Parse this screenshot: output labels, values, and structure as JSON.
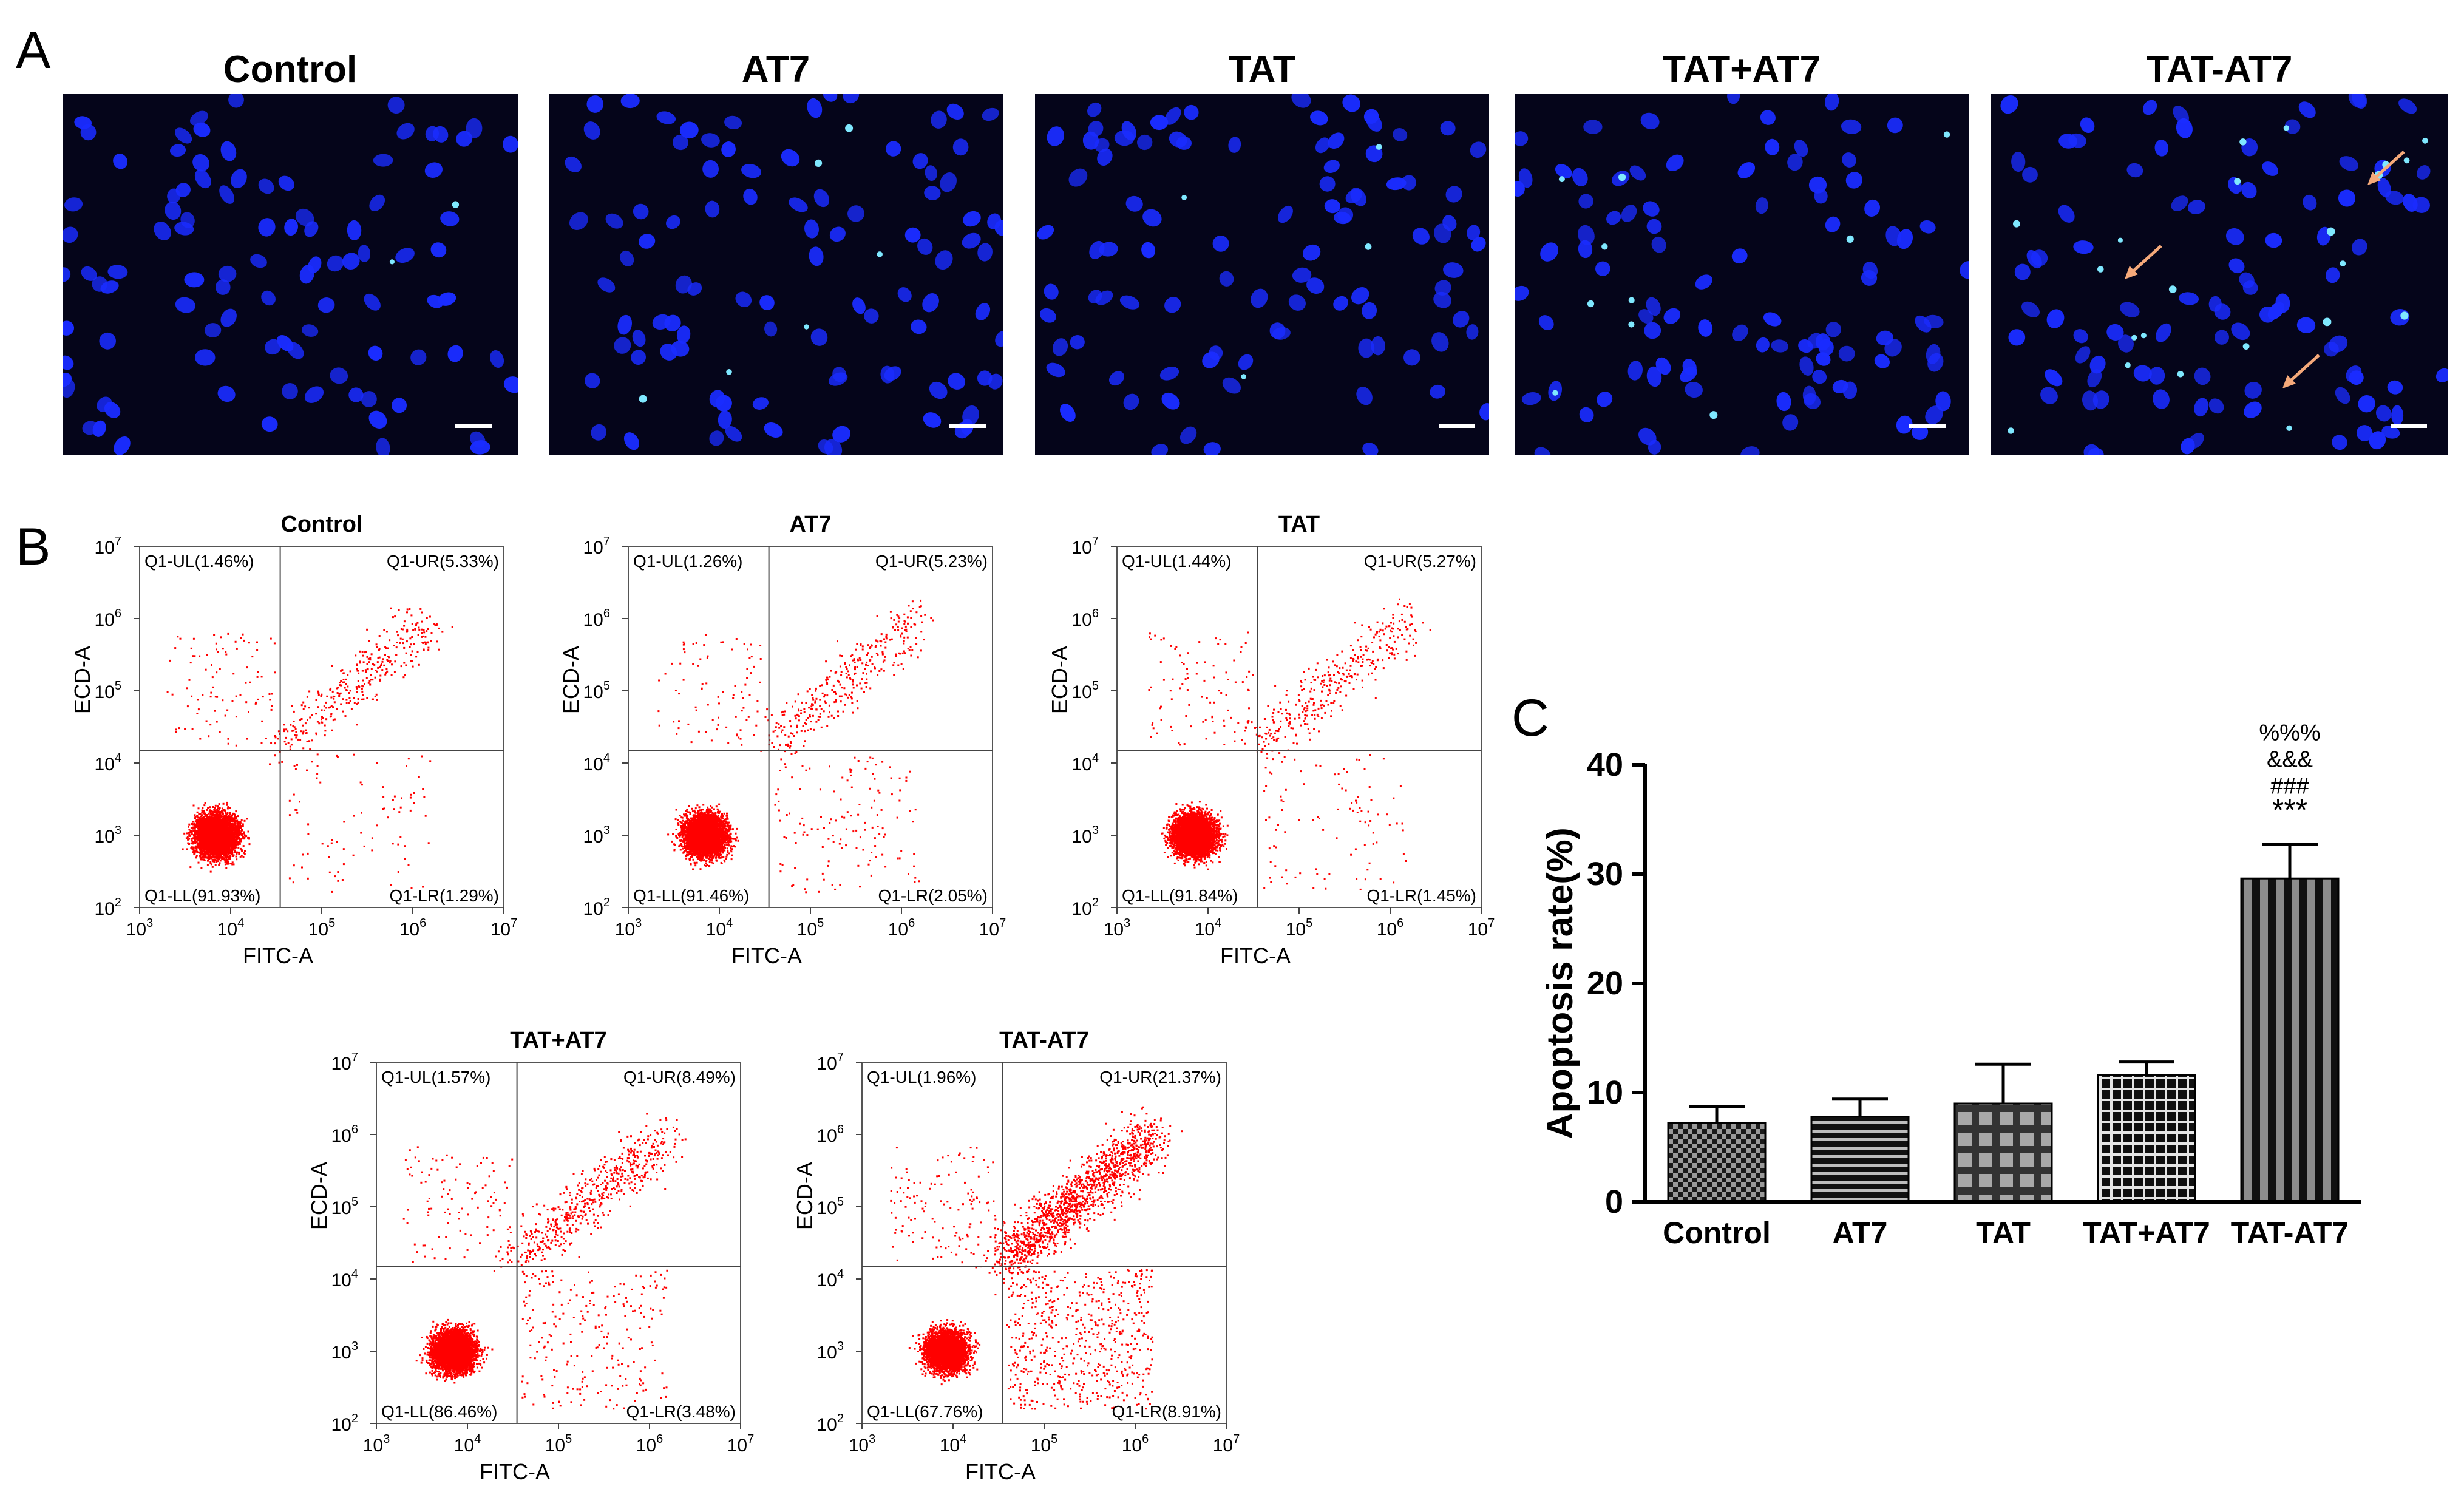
{
  "panel_labels": {
    "a": "A",
    "b": "B",
    "c": "C"
  },
  "microscopy": {
    "panels": [
      {
        "title": "Control",
        "arrows": 0
      },
      {
        "title": "AT7",
        "arrows": 0
      },
      {
        "title": "TAT",
        "arrows": 0
      },
      {
        "title": "TAT+AT7",
        "arrows": 0
      },
      {
        "title": "TAT-AT7",
        "arrows": 3
      }
    ],
    "background_color": "#05051a",
    "nucleus_color": "#1a2cff",
    "bright_nucleus_color": "#7fe8ff",
    "arrow_color": "#f5a97a"
  },
  "chart_data": [
    {
      "type": "scatter",
      "title": "Control",
      "xlabel": "FITC-A",
      "ylabel": "ECD-A",
      "xscale": "log",
      "yscale": "log",
      "xlim": [
        1000,
        10000000
      ],
      "ylim": [
        100,
        10000000
      ],
      "gate": {
        "x": 35000,
        "y": 15000
      },
      "quadrants": {
        "UL": "Q1-UL(1.46%)",
        "UR": "Q1-UR(5.33%)",
        "LL": "Q1-LL(91.93%)",
        "LR": "Q1-LR(1.29%)"
      },
      "percentages": {
        "UL": 1.46,
        "UR": 5.33,
        "LL": 91.93,
        "LR": 1.29
      },
      "point_color": "#ff0000"
    },
    {
      "type": "scatter",
      "title": "AT7",
      "xlabel": "FITC-A",
      "ylabel": "ECD-A",
      "xscale": "log",
      "yscale": "log",
      "xlim": [
        1000,
        10000000
      ],
      "ylim": [
        100,
        10000000
      ],
      "gate": {
        "x": 35000,
        "y": 15000
      },
      "quadrants": {
        "UL": "Q1-UL(1.26%)",
        "UR": "Q1-UR(5.23%)",
        "LL": "Q1-LL(91.46%)",
        "LR": "Q1-LR(2.05%)"
      },
      "percentages": {
        "UL": 1.26,
        "UR": 5.23,
        "LL": 91.46,
        "LR": 2.05
      },
      "point_color": "#ff0000"
    },
    {
      "type": "scatter",
      "title": "TAT",
      "xlabel": "FITC-A",
      "ylabel": "ECD-A",
      "xscale": "log",
      "yscale": "log",
      "xlim": [
        1000,
        10000000
      ],
      "ylim": [
        100,
        10000000
      ],
      "gate": {
        "x": 35000,
        "y": 15000
      },
      "quadrants": {
        "UL": "Q1-UL(1.44%)",
        "UR": "Q1-UR(5.27%)",
        "LL": "Q1-LL(91.84%)",
        "LR": "Q1-LR(1.45%)"
      },
      "percentages": {
        "UL": 1.44,
        "UR": 5.27,
        "LL": 91.84,
        "LR": 1.45
      },
      "point_color": "#ff0000"
    },
    {
      "type": "scatter",
      "title": "TAT+AT7",
      "xlabel": "FITC-A",
      "ylabel": "ECD-A",
      "xscale": "log",
      "yscale": "log",
      "xlim": [
        1000,
        10000000
      ],
      "ylim": [
        100,
        10000000
      ],
      "gate": {
        "x": 35000,
        "y": 15000
      },
      "quadrants": {
        "UL": "Q1-UL(1.57%)",
        "UR": "Q1-UR(8.49%)",
        "LL": "Q1-LL(86.46%)",
        "LR": "Q1-LR(3.48%)"
      },
      "percentages": {
        "UL": 1.57,
        "UR": 8.49,
        "LL": 86.46,
        "LR": 3.48
      },
      "point_color": "#ff0000"
    },
    {
      "type": "scatter",
      "title": "TAT-AT7",
      "xlabel": "FITC-A",
      "ylabel": "ECD-A",
      "xscale": "log",
      "yscale": "log",
      "xlim": [
        1000,
        10000000
      ],
      "ylim": [
        100,
        10000000
      ],
      "gate": {
        "x": 35000,
        "y": 15000
      },
      "quadrants": {
        "UL": "Q1-UL(1.96%)",
        "UR": "Q1-UR(21.37%)",
        "LL": "Q1-LL(67.76%)",
        "LR": "Q1-LR(8.91%)"
      },
      "percentages": {
        "UL": 1.96,
        "UR": 21.37,
        "LL": 67.76,
        "LR": 8.91
      },
      "point_color": "#ff0000"
    },
    {
      "type": "bar",
      "categories": [
        "Control",
        "AT7",
        "TAT",
        "TAT+AT7",
        "TAT-AT7"
      ],
      "values": [
        7.2,
        7.8,
        9.0,
        11.6,
        29.6
      ],
      "errors": [
        1.5,
        1.6,
        3.6,
        1.2,
        3.1
      ],
      "patterns": [
        "checker",
        "horizontal",
        "grid-light",
        "grid-dark",
        "vertical"
      ],
      "significance": [
        "",
        "",
        "",
        "",
        "%%%\n&&&\n###\n***"
      ],
      "ylabel": "Apoptosis rate(%)",
      "ylim": [
        0,
        40
      ],
      "yticks": [
        0,
        10,
        20,
        30,
        40
      ]
    }
  ]
}
